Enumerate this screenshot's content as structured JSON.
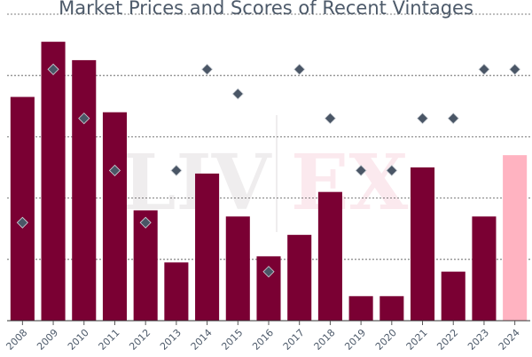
{
  "chart_data": {
    "type": "bar",
    "title": "Market Prices and Scores of Recent Vintages",
    "categories": [
      "2008",
      "2009",
      "2010",
      "2011",
      "2012",
      "2013",
      "2014",
      "2015",
      "2016",
      "2017",
      "2018",
      "2019",
      "2020",
      "2021",
      "2022",
      "2023",
      "2024"
    ],
    "series": [
      {
        "type": "bar",
        "values": [
          73,
          91,
          85,
          68,
          36,
          19,
          48,
          34,
          21,
          28,
          42,
          8,
          8,
          50,
          16,
          34,
          54
        ]
      },
      {
        "type": "scatter",
        "marker": "diamond",
        "values": [
          32,
          82,
          66,
          49,
          32,
          49,
          82,
          74,
          16,
          82,
          66,
          49,
          49,
          66,
          66,
          82,
          82
        ]
      }
    ],
    "highlight_category": "2024",
    "bar_color": "#7a0033",
    "highlight_color": "#ffb3c1",
    "marker_color": "#4a5666",
    "ylim": [
      0,
      100
    ],
    "y_gridlines": [
      20,
      40,
      60,
      80,
      100
    ],
    "xlabel": "",
    "ylabel": "",
    "watermark": "LIV | EX",
    "grid": true
  }
}
